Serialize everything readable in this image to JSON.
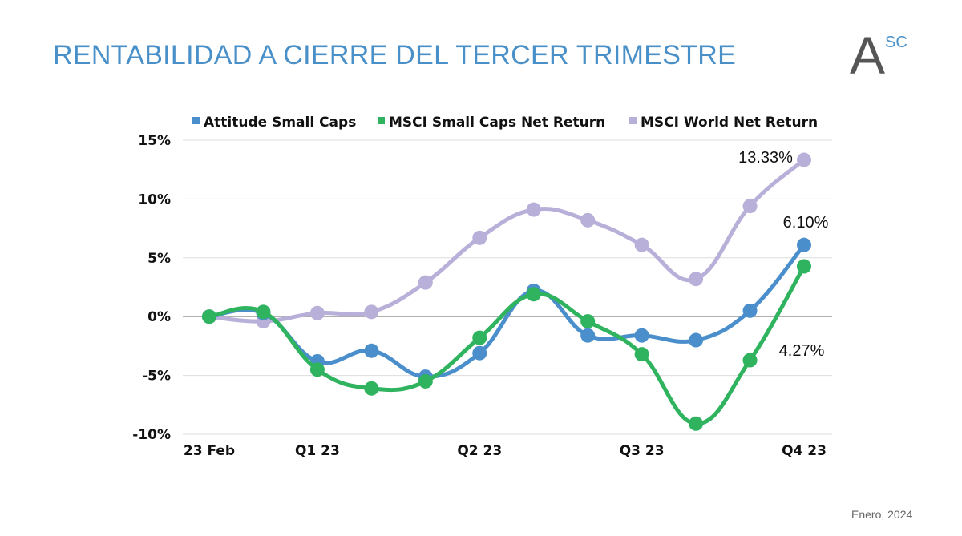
{
  "header": {
    "title": "RENTABILIDAD A CIERRE DEL TERCER TRIMESTRE"
  },
  "logo": {
    "letter": "A",
    "superscript": "SC"
  },
  "footer": {
    "date": "Enero, 2024"
  },
  "chart_data": {
    "type": "line",
    "title": "",
    "xlabel": "",
    "ylabel": "",
    "ylim": [
      -10,
      15
    ],
    "yticks": [
      15,
      10,
      5,
      0,
      -5,
      -10
    ],
    "ytick_labels": [
      "15%",
      "10%",
      "5%",
      "0%",
      "-5%",
      "-10%"
    ],
    "x_tick_labels": [
      {
        "index": 0,
        "label": "23 Feb"
      },
      {
        "index": 2,
        "label": "Q1 23"
      },
      {
        "index": 5,
        "label": "Q2 23"
      },
      {
        "index": 8,
        "label": "Q3 23"
      },
      {
        "index": 11,
        "label": "Q4 23"
      }
    ],
    "grid": true,
    "legend_position": "top",
    "series": [
      {
        "name": "Attitude Small Caps",
        "color": "#4a8fcc",
        "values": [
          0,
          0.3,
          -3.8,
          -2.9,
          -5.1,
          -3.1,
          2.2,
          -1.6,
          -1.6,
          -2.0,
          0.5,
          6.1
        ]
      },
      {
        "name": "MSCI Small Caps Net Return",
        "color": "#2fb35f",
        "values": [
          0,
          0.4,
          -4.5,
          -6.1,
          -5.5,
          -1.8,
          1.9,
          -0.4,
          -3.2,
          -9.1,
          -3.7,
          4.27
        ]
      },
      {
        "name": "MSCI World Net Return",
        "color": "#b8b0d8",
        "values": [
          0,
          -0.4,
          0.3,
          0.4,
          2.9,
          6.7,
          9.1,
          8.2,
          6.1,
          3.2,
          9.4,
          13.33
        ]
      }
    ],
    "data_labels": [
      {
        "series": 2,
        "index": 11,
        "text": "13.33%"
      },
      {
        "series": 0,
        "index": 11,
        "text": "6.10%"
      },
      {
        "series": 1,
        "index": 11,
        "text": "4.27%"
      }
    ]
  }
}
